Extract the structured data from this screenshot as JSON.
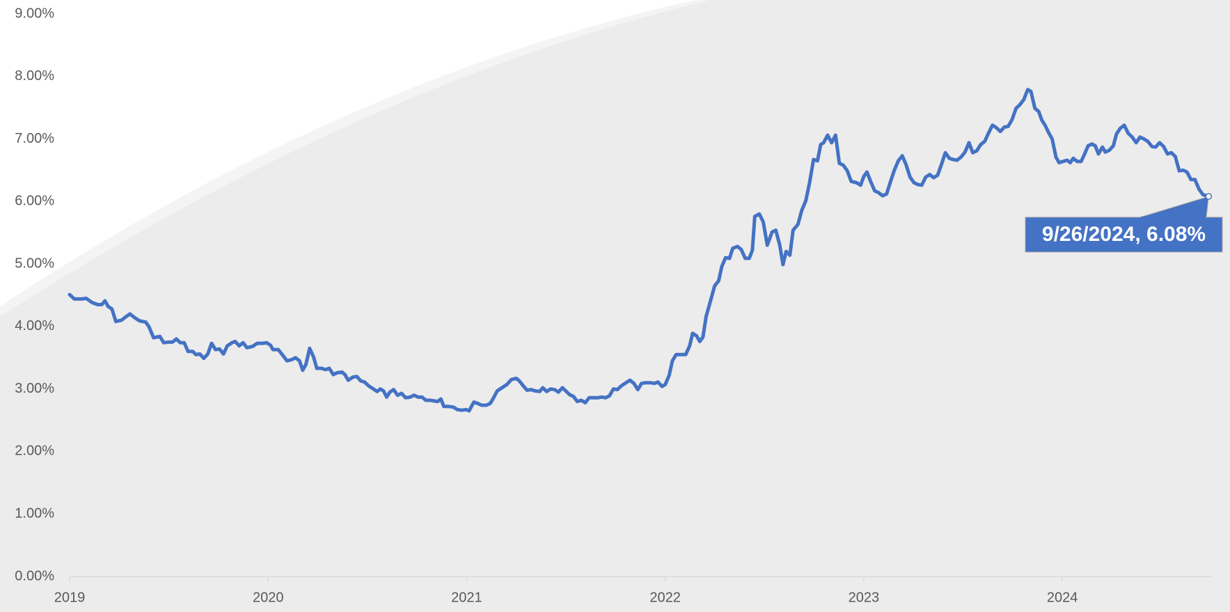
{
  "chart_data": {
    "type": "line",
    "color": "#4472c4",
    "annotation": "9/26/2024, 6.08%",
    "xlim": [
      2019,
      2024.75
    ],
    "xticks": [
      2019,
      2020,
      2021,
      2022,
      2023,
      2024
    ],
    "ylim": [
      0,
      9
    ],
    "yticks": [
      {
        "value": 0,
        "label": "0.00%"
      },
      {
        "value": 1,
        "label": "1.00%"
      },
      {
        "value": 2,
        "label": "2.00%"
      },
      {
        "value": 3,
        "label": "3.00%"
      },
      {
        "value": 4,
        "label": "4.00%"
      },
      {
        "value": 5,
        "label": "5.00%"
      },
      {
        "value": 6,
        "label": "6.00%"
      },
      {
        "value": 7,
        "label": "7.00%"
      },
      {
        "value": 8,
        "label": "8.00%"
      },
      {
        "value": 9,
        "label": "9.00%"
      }
    ],
    "grid": false,
    "x": [
      2019.0,
      2019.024,
      2019.063,
      2019.083,
      2019.115,
      2019.142,
      2019.162,
      2019.178,
      2019.194,
      2019.213,
      2019.233,
      2019.261,
      2019.281,
      2019.304,
      2019.328,
      2019.352,
      2019.383,
      2019.399,
      2019.423,
      2019.455,
      2019.474,
      2019.498,
      2019.518,
      2019.538,
      2019.557,
      2019.577,
      2019.597,
      2019.621,
      2019.636,
      2019.656,
      2019.676,
      2019.696,
      2019.715,
      2019.735,
      2019.755,
      2019.775,
      2019.794,
      2019.818,
      2019.834,
      2019.854,
      2019.874,
      2019.893,
      2019.921,
      2019.945,
      2019.972,
      2019.992,
      2020.012,
      2020.024,
      2020.051,
      2020.071,
      2020.095,
      2020.119,
      2020.138,
      2020.158,
      2020.174,
      2020.19,
      2020.209,
      2020.229,
      2020.245,
      2020.269,
      2020.289,
      2020.308,
      2020.328,
      2020.348,
      2020.372,
      2020.387,
      2020.403,
      2020.427,
      2020.447,
      2020.466,
      2020.486,
      2020.506,
      2020.53,
      2020.549,
      2020.565,
      2020.581,
      2020.597,
      2020.613,
      2020.632,
      2020.652,
      2020.672,
      2020.692,
      2020.715,
      2020.735,
      2020.755,
      2020.775,
      2020.794,
      2020.814,
      2020.834,
      2020.854,
      2020.87,
      2020.885,
      2020.909,
      2020.933,
      2020.953,
      2020.976,
      2020.996,
      2021.012,
      2021.036,
      2021.055,
      2021.075,
      2021.099,
      2021.119,
      2021.134,
      2021.154,
      2021.178,
      2021.202,
      2021.225,
      2021.249,
      2021.265,
      2021.285,
      2021.304,
      2021.324,
      2021.344,
      2021.368,
      2021.383,
      2021.403,
      2021.423,
      2021.443,
      2021.462,
      2021.482,
      2021.502,
      2021.518,
      2021.538,
      2021.557,
      2021.577,
      2021.597,
      2021.617,
      2021.636,
      2021.66,
      2021.68,
      2021.7,
      2021.719,
      2021.739,
      2021.759,
      2021.779,
      2021.798,
      2021.822,
      2021.842,
      2021.862,
      2021.881,
      2021.901,
      2021.925,
      2021.945,
      2021.964,
      2021.984,
      2022.0,
      2022.02,
      2022.036,
      2022.055,
      2022.079,
      2022.103,
      2022.123,
      2022.138,
      2022.158,
      2022.174,
      2022.19,
      2022.206,
      2022.229,
      2022.249,
      2022.269,
      2022.285,
      2022.304,
      2022.324,
      2022.34,
      2022.364,
      2022.383,
      2022.403,
      2022.423,
      2022.439,
      2022.451,
      2022.474,
      2022.494,
      2022.514,
      2022.538,
      2022.557,
      2022.577,
      2022.593,
      2022.609,
      2022.628,
      2022.644,
      2022.668,
      2022.688,
      2022.708,
      2022.727,
      2022.747,
      2022.767,
      2022.783,
      2022.798,
      2022.818,
      2022.838,
      2022.858,
      2022.877,
      2022.897,
      2022.917,
      2022.937,
      2022.964,
      2022.984,
      2023.0,
      2023.016,
      2023.036,
      2023.055,
      2023.075,
      2023.095,
      2023.115,
      2023.134,
      2023.154,
      2023.174,
      2023.194,
      2023.213,
      2023.233,
      2023.253,
      2023.273,
      2023.292,
      2023.312,
      2023.332,
      2023.352,
      2023.372,
      2023.391,
      2023.411,
      2023.431,
      2023.451,
      2023.47,
      2023.49,
      2023.51,
      2023.53,
      2023.549,
      2023.569,
      2023.589,
      2023.609,
      2023.628,
      2023.648,
      2023.668,
      2023.688,
      2023.708,
      2023.727,
      2023.747,
      2023.767,
      2023.787,
      2023.806,
      2023.826,
      2023.842,
      2023.862,
      2023.881,
      2023.897,
      2023.913,
      2023.933,
      2023.949,
      2023.968,
      2023.984,
      2024.004,
      2024.024,
      2024.04,
      2024.055,
      2024.075,
      2024.095,
      2024.111,
      2024.13,
      2024.15,
      2024.166,
      2024.182,
      2024.202,
      2024.217,
      2024.237,
      2024.257,
      2024.273,
      2024.292,
      2024.312,
      2024.332,
      2024.352,
      2024.372,
      2024.391,
      2024.411,
      2024.431,
      2024.451,
      2024.47,
      2024.49,
      2024.51,
      2024.53,
      2024.549,
      2024.569,
      2024.589,
      2024.609,
      2024.628,
      2024.648,
      2024.668,
      2024.688,
      2024.708,
      2024.737
    ],
    "values": [
      4.51,
      4.44,
      4.44,
      4.45,
      4.38,
      4.35,
      4.35,
      4.41,
      4.32,
      4.28,
      4.08,
      4.1,
      4.15,
      4.2,
      4.14,
      4.09,
      4.07,
      4.0,
      3.82,
      3.84,
      3.74,
      3.75,
      3.75,
      3.8,
      3.74,
      3.74,
      3.6,
      3.6,
      3.55,
      3.56,
      3.49,
      3.56,
      3.73,
      3.63,
      3.64,
      3.56,
      3.69,
      3.74,
      3.76,
      3.69,
      3.74,
      3.66,
      3.68,
      3.73,
      3.73,
      3.74,
      3.7,
      3.63,
      3.63,
      3.55,
      3.45,
      3.47,
      3.5,
      3.45,
      3.3,
      3.39,
      3.65,
      3.51,
      3.33,
      3.33,
      3.31,
      3.33,
      3.23,
      3.26,
      3.27,
      3.23,
      3.14,
      3.19,
      3.2,
      3.13,
      3.11,
      3.05,
      3.0,
      2.96,
      3.0,
      2.97,
      2.87,
      2.95,
      2.99,
      2.9,
      2.93,
      2.86,
      2.87,
      2.9,
      2.87,
      2.87,
      2.82,
      2.82,
      2.81,
      2.8,
      2.84,
      2.72,
      2.72,
      2.71,
      2.67,
      2.66,
      2.67,
      2.65,
      2.79,
      2.77,
      2.74,
      2.74,
      2.77,
      2.85,
      2.97,
      3.02,
      3.07,
      3.15,
      3.17,
      3.13,
      3.05,
      2.98,
      2.99,
      2.97,
      2.96,
      3.02,
      2.96,
      3.0,
      2.99,
      2.95,
      3.02,
      2.96,
      2.91,
      2.88,
      2.8,
      2.82,
      2.78,
      2.86,
      2.86,
      2.86,
      2.87,
      2.86,
      2.89,
      3.0,
      2.99,
      3.05,
      3.09,
      3.14,
      3.09,
      2.99,
      3.09,
      3.1,
      3.1,
      3.09,
      3.11,
      3.04,
      3.07,
      3.22,
      3.45,
      3.55,
      3.55,
      3.55,
      3.69,
      3.89,
      3.85,
      3.76,
      3.83,
      4.16,
      4.42,
      4.65,
      4.73,
      4.96,
      5.1,
      5.09,
      5.25,
      5.28,
      5.23,
      5.09,
      5.09,
      5.22,
      5.76,
      5.8,
      5.67,
      5.3,
      5.51,
      5.54,
      5.3,
      4.99,
      5.2,
      5.14,
      5.54,
      5.63,
      5.86,
      6.01,
      6.3,
      6.67,
      6.65,
      6.91,
      6.94,
      7.06,
      6.94,
      7.06,
      6.61,
      6.58,
      6.49,
      6.32,
      6.3,
      6.26,
      6.4,
      6.47,
      6.31,
      6.17,
      6.14,
      6.09,
      6.12,
      6.31,
      6.5,
      6.65,
      6.73,
      6.59,
      6.39,
      6.3,
      6.27,
      6.26,
      6.39,
      6.43,
      6.38,
      6.42,
      6.59,
      6.78,
      6.69,
      6.67,
      6.66,
      6.71,
      6.79,
      6.94,
      6.78,
      6.81,
      6.91,
      6.96,
      7.09,
      7.22,
      7.18,
      7.12,
      7.19,
      7.2,
      7.31,
      7.49,
      7.55,
      7.63,
      7.79,
      7.76,
      7.49,
      7.44,
      7.3,
      7.22,
      7.09,
      7.0,
      6.71,
      6.62,
      6.64,
      6.66,
      6.62,
      6.69,
      6.64,
      6.64,
      6.75,
      6.89,
      6.92,
      6.89,
      6.76,
      6.87,
      6.79,
      6.82,
      6.89,
      7.08,
      7.17,
      7.22,
      7.09,
      7.03,
      6.94,
      7.03,
      7.0,
      6.96,
      6.88,
      6.87,
      6.94,
      6.88,
      6.76,
      6.78,
      6.72,
      6.49,
      6.5,
      6.47,
      6.35,
      6.35,
      6.2,
      6.11,
      6.08
    ]
  }
}
